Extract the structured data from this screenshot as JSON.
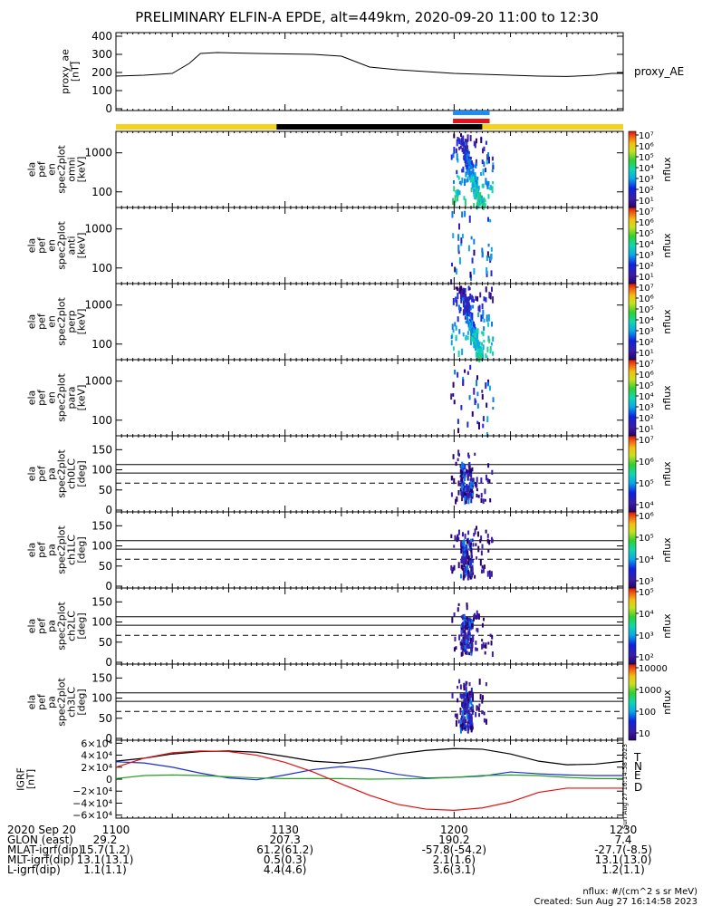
{
  "title": "PRELIMINARY ELFIN-A EPDE, alt=449km, 2020-09-20 11:00 to 12:30",
  "colors": {
    "gold": "#f6d21c",
    "sunline_black": "#000000",
    "bar_blue": "#1e8cf0",
    "bar_red": "#e8101a",
    "T": "#000000",
    "N": "#1a2fd0",
    "E": "#22a022",
    "D": "#e01010"
  },
  "time_axis": {
    "start_min": 0,
    "end_min": 90,
    "ticks": [
      {
        "min": 0,
        "label": "1100"
      },
      {
        "min": 30,
        "label": "1130"
      },
      {
        "min": 60,
        "label": "1200"
      },
      {
        "min": 90,
        "label": "1230"
      }
    ]
  },
  "footer": {
    "rows": [
      {
        "name": "2020 Sep 20",
        "vals": [
          "",
          "",
          "",
          ""
        ]
      },
      {
        "name": "GLON (east)",
        "vals": [
          "29.2",
          "207.3",
          "190.2",
          "7.4"
        ]
      },
      {
        "name": "MLAT-igrf(dip)",
        "vals": [
          "15.7(1.2)",
          "61.2(61.2)",
          "-57.8(-54.2)",
          "-27.7(-8.5)"
        ]
      },
      {
        "name": "MLT-igrf(dip)",
        "vals": [
          "13.1(13.1)",
          "0.5(0.3)",
          "2.1(1.6)",
          "13.1(13.0)"
        ]
      },
      {
        "name": "L-igrf(dip)",
        "vals": [
          "1.1(1.1)",
          "4.4(4.6)",
          "3.6(3.1)",
          "1.2(1.1)"
        ]
      }
    ],
    "units_note": "nflux: #/(cm^2 s sr MeV)",
    "created": "Created: Sun Aug 27 16:14:58 2023",
    "side_stamp": "Sun Aug 27 16:14:58 2023"
  },
  "chart_data": [
    {
      "type": "line",
      "ylabel_lines": [
        "proxy_ae",
        "[nT]"
      ],
      "legend": "proxy_AE",
      "ylim": [
        -10,
        420
      ],
      "ticks": [
        "0",
        "100",
        "200",
        "300",
        "400"
      ],
      "tick_vals": [
        0,
        100,
        200,
        300,
        400
      ],
      "x": [
        0,
        5,
        10,
        13,
        15,
        18,
        25,
        35,
        40,
        45,
        50,
        55,
        60,
        65,
        70,
        75,
        80,
        85,
        88,
        90
      ],
      "y": [
        180,
        185,
        195,
        250,
        305,
        310,
        305,
        300,
        290,
        230,
        215,
        205,
        195,
        190,
        185,
        180,
        178,
        185,
        195,
        195
      ]
    },
    {
      "type": "bar",
      "role": "sun-orbit-bar",
      "segments": [
        {
          "from": 0,
          "to": 28.5,
          "color": "gold"
        },
        {
          "from": 28.5,
          "to": 65,
          "color": "sunline_black"
        },
        {
          "from": 65,
          "to": 90,
          "color": "gold"
        }
      ],
      "markers": [
        {
          "from": 59.8,
          "to": 66.3,
          "color": "bar_blue",
          "row": 0
        },
        {
          "from": 59.8,
          "to": 66.3,
          "color": "bar_red",
          "row": 1
        }
      ]
    },
    {
      "type": "heatmap",
      "ylabel_lines": [
        "ela",
        "pef",
        "en",
        "spec2plot",
        "omni",
        "[keV]"
      ],
      "ticks": [
        "100",
        "1000"
      ],
      "colorbar_ticks": [
        "10¹",
        "10²",
        "10³",
        "10⁴",
        "10⁵",
        "10⁶",
        "10⁷"
      ],
      "colorbar_label": "nflux",
      "activity": "strong"
    },
    {
      "type": "heatmap",
      "ylabel_lines": [
        "ela",
        "pef",
        "en",
        "spec2plot",
        "anti",
        "[keV]"
      ],
      "ticks": [
        "100",
        "1000"
      ],
      "colorbar_ticks": [
        "10¹",
        "10²",
        "10³",
        "10⁴",
        "10⁵",
        "10⁶",
        "10⁷"
      ],
      "colorbar_label": "nflux",
      "activity": "weak"
    },
    {
      "type": "heatmap",
      "ylabel_lines": [
        "ela",
        "pef",
        "en",
        "spec2plot",
        "perp",
        "[keV]"
      ],
      "ticks": [
        "100",
        "1000"
      ],
      "colorbar_ticks": [
        "10¹",
        "10²",
        "10³",
        "10⁴",
        "10⁵",
        "10⁶",
        "10⁷"
      ],
      "colorbar_label": "nflux",
      "activity": "strong"
    },
    {
      "type": "heatmap",
      "ylabel_lines": [
        "ela",
        "pef",
        "en",
        "spec2plot",
        "para",
        "[keV]"
      ],
      "ticks": [
        "100",
        "1000"
      ],
      "colorbar_ticks": [
        "10¹",
        "10²",
        "10³",
        "10⁴",
        "10⁵",
        "10⁶",
        "10⁷"
      ],
      "colorbar_label": "nflux",
      "activity": "weak"
    },
    {
      "type": "heatmap",
      "ylabel_lines": [
        "ela",
        "pef",
        "pa",
        "spec2plot",
        "ch0LC",
        "[deg]"
      ],
      "ticks": [
        "0",
        "50",
        "100",
        "150"
      ],
      "colorbar_ticks": [
        "10⁴",
        "10⁵",
        "10⁶",
        "10⁷"
      ],
      "colorbar_label": "nflux",
      "activity": "pa"
    },
    {
      "type": "heatmap",
      "ylabel_lines": [
        "ela",
        "pef",
        "pa",
        "spec2plot",
        "ch1LC",
        "[deg]"
      ],
      "ticks": [
        "0",
        "50",
        "100",
        "150"
      ],
      "colorbar_ticks": [
        "10³",
        "10⁴",
        "10⁵",
        "10⁶"
      ],
      "colorbar_label": "nflux",
      "activity": "pa"
    },
    {
      "type": "heatmap",
      "ylabel_lines": [
        "ela",
        "pef",
        "pa",
        "spec2plot",
        "ch2LC",
        "[deg]"
      ],
      "ticks": [
        "0",
        "50",
        "100",
        "150"
      ],
      "colorbar_ticks": [
        "10²",
        "10³",
        "10⁴",
        "10⁵"
      ],
      "colorbar_label": "nflux",
      "activity": "pa"
    },
    {
      "type": "heatmap",
      "ylabel_lines": [
        "ela",
        "pef",
        "pa",
        "spec2plot",
        "ch3LC",
        "[deg]"
      ],
      "ticks": [
        "0",
        "50",
        "100",
        "150"
      ],
      "colorbar_ticks": [
        "10",
        "100",
        "1000",
        "10000"
      ],
      "colorbar_label": "nflux",
      "activity": "pa"
    },
    {
      "type": "line",
      "ylabel_lines": [
        "IGRF",
        "[nT]"
      ],
      "ylim": [
        -65000,
        65000
      ],
      "tick_vals": [
        -60000,
        -40000,
        -20000,
        0,
        20000,
        40000,
        60000
      ],
      "ticks": [
        "−6×10⁴",
        "−4×10⁴",
        "−2×10⁴",
        "0",
        "2×10⁴",
        "4×10⁴",
        "6×10⁴"
      ],
      "x": [
        0,
        5,
        10,
        15,
        20,
        25,
        30,
        35,
        40,
        45,
        50,
        55,
        60,
        65,
        70,
        75,
        80,
        85,
        90
      ],
      "series": [
        {
          "name": "T",
          "color": "T",
          "values": [
            30000,
            35000,
            42000,
            46000,
            47000,
            45000,
            38000,
            30000,
            27000,
            33000,
            42000,
            48000,
            51000,
            50000,
            42000,
            30000,
            24000,
            25000,
            30000
          ]
        },
        {
          "name": "N",
          "color": "N",
          "values": [
            29000,
            27000,
            20000,
            10000,
            2000,
            -1000,
            7000,
            16000,
            21000,
            17000,
            8000,
            2000,
            3000,
            5000,
            12000,
            9000,
            7000,
            6000,
            6000
          ]
        },
        {
          "name": "E",
          "color": "E",
          "values": [
            1000,
            6000,
            7000,
            6000,
            4000,
            2000,
            1000,
            1000,
            1000,
            0,
            500,
            1000,
            3000,
            6000,
            7000,
            6000,
            3000,
            1000,
            1000
          ]
        },
        {
          "name": "D",
          "color": "D",
          "values": [
            20000,
            35000,
            44000,
            47000,
            46000,
            40000,
            28000,
            12000,
            -8000,
            -27000,
            -42000,
            -50000,
            -52000,
            -48000,
            -38000,
            -22000,
            -15000,
            -15000,
            -15000
          ]
        }
      ]
    }
  ]
}
